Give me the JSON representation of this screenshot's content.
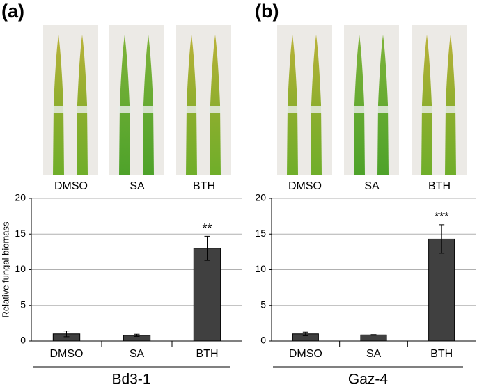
{
  "chart_data": [
    {
      "type": "bar",
      "panel_label": "(a)",
      "photo_labels": [
        "DMSO",
        "SA",
        "BTH"
      ],
      "categories": [
        "DMSO",
        "SA",
        "BTH"
      ],
      "values": [
        1.0,
        0.8,
        13.0
      ],
      "errors": [
        0.4,
        0.15,
        1.7
      ],
      "color": "#404040",
      "ylim": [
        0,
        20
      ],
      "yticks": [
        0,
        5,
        10,
        15,
        20
      ],
      "grid": true,
      "ylabel": "Relative fungal biomass",
      "annotation": {
        "label": "**",
        "category": "BTH"
      },
      "group_label": "Bd3-1"
    },
    {
      "type": "bar",
      "panel_label": "(b)",
      "photo_labels": [
        "DMSO",
        "SA",
        "BTH"
      ],
      "categories": [
        "DMSO",
        "SA",
        "BTH"
      ],
      "values": [
        1.0,
        0.85,
        14.3
      ],
      "errors": [
        0.25,
        0.05,
        2.0
      ],
      "color": "#404040",
      "ylim": [
        0,
        20
      ],
      "yticks": [
        0,
        5,
        10,
        15,
        20
      ],
      "grid": true,
      "annotation": {
        "label": "***",
        "category": "BTH"
      },
      "group_label": "Gaz-4"
    }
  ]
}
